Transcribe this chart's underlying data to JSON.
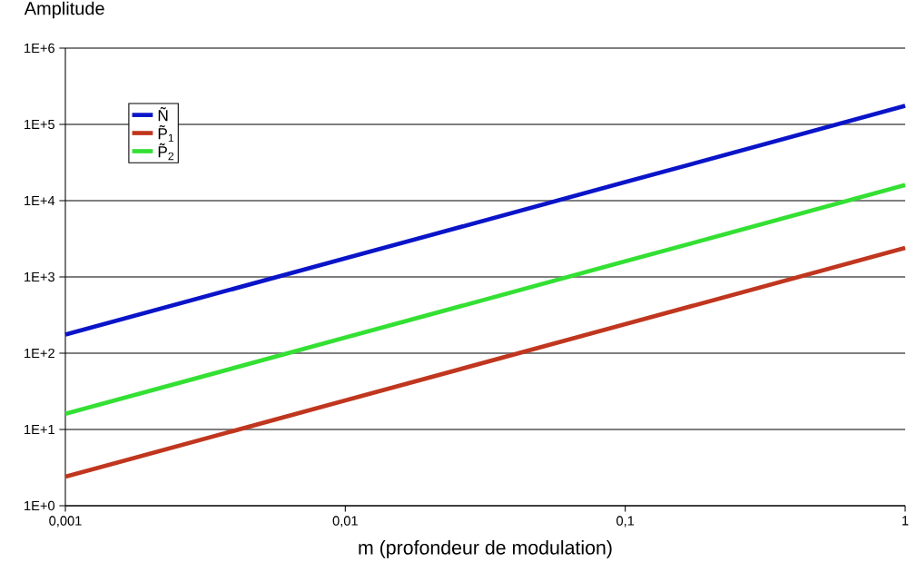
{
  "chart_data": {
    "type": "line",
    "ylabel": "Amplitude",
    "xlabel": "m (profondeur de modulation)",
    "x": [
      0.001,
      0.01,
      0.1,
      1
    ],
    "series": [
      {
        "name": "Ñ",
        "color": "#0a14c8",
        "values": [
          175,
          1750,
          17500,
          175000
        ]
      },
      {
        "name": "P̃$_{1}$",
        "color": "#c0361e",
        "values": [
          2.4,
          24,
          240,
          2400
        ]
      },
      {
        "name": "P̃$_{2}$",
        "color": "#33e033",
        "values": [
          16,
          160,
          1600,
          16000
        ]
      }
    ],
    "log": "xy",
    "xlim": [
      0.001,
      1
    ],
    "ylim": [
      1,
      1000000
    ],
    "xticks": [
      {
        "value": 0.001,
        "label": "0,001"
      },
      {
        "value": 0.01,
        "label": "0,01"
      },
      {
        "value": 0.1,
        "label": "0,1"
      },
      {
        "value": 1,
        "label": "1"
      }
    ],
    "yticks": [
      {
        "value": 1,
        "label": "1E+0"
      },
      {
        "value": 10,
        "label": "1E+1"
      },
      {
        "value": 100,
        "label": "1E+2"
      },
      {
        "value": 1000,
        "label": "1E+3"
      },
      {
        "value": 10000,
        "label": "1E+4"
      },
      {
        "value": 100000,
        "label": "1E+5"
      },
      {
        "value": 1000000,
        "label": "1E+6"
      }
    ],
    "grid": "y",
    "legend": "top left"
  }
}
